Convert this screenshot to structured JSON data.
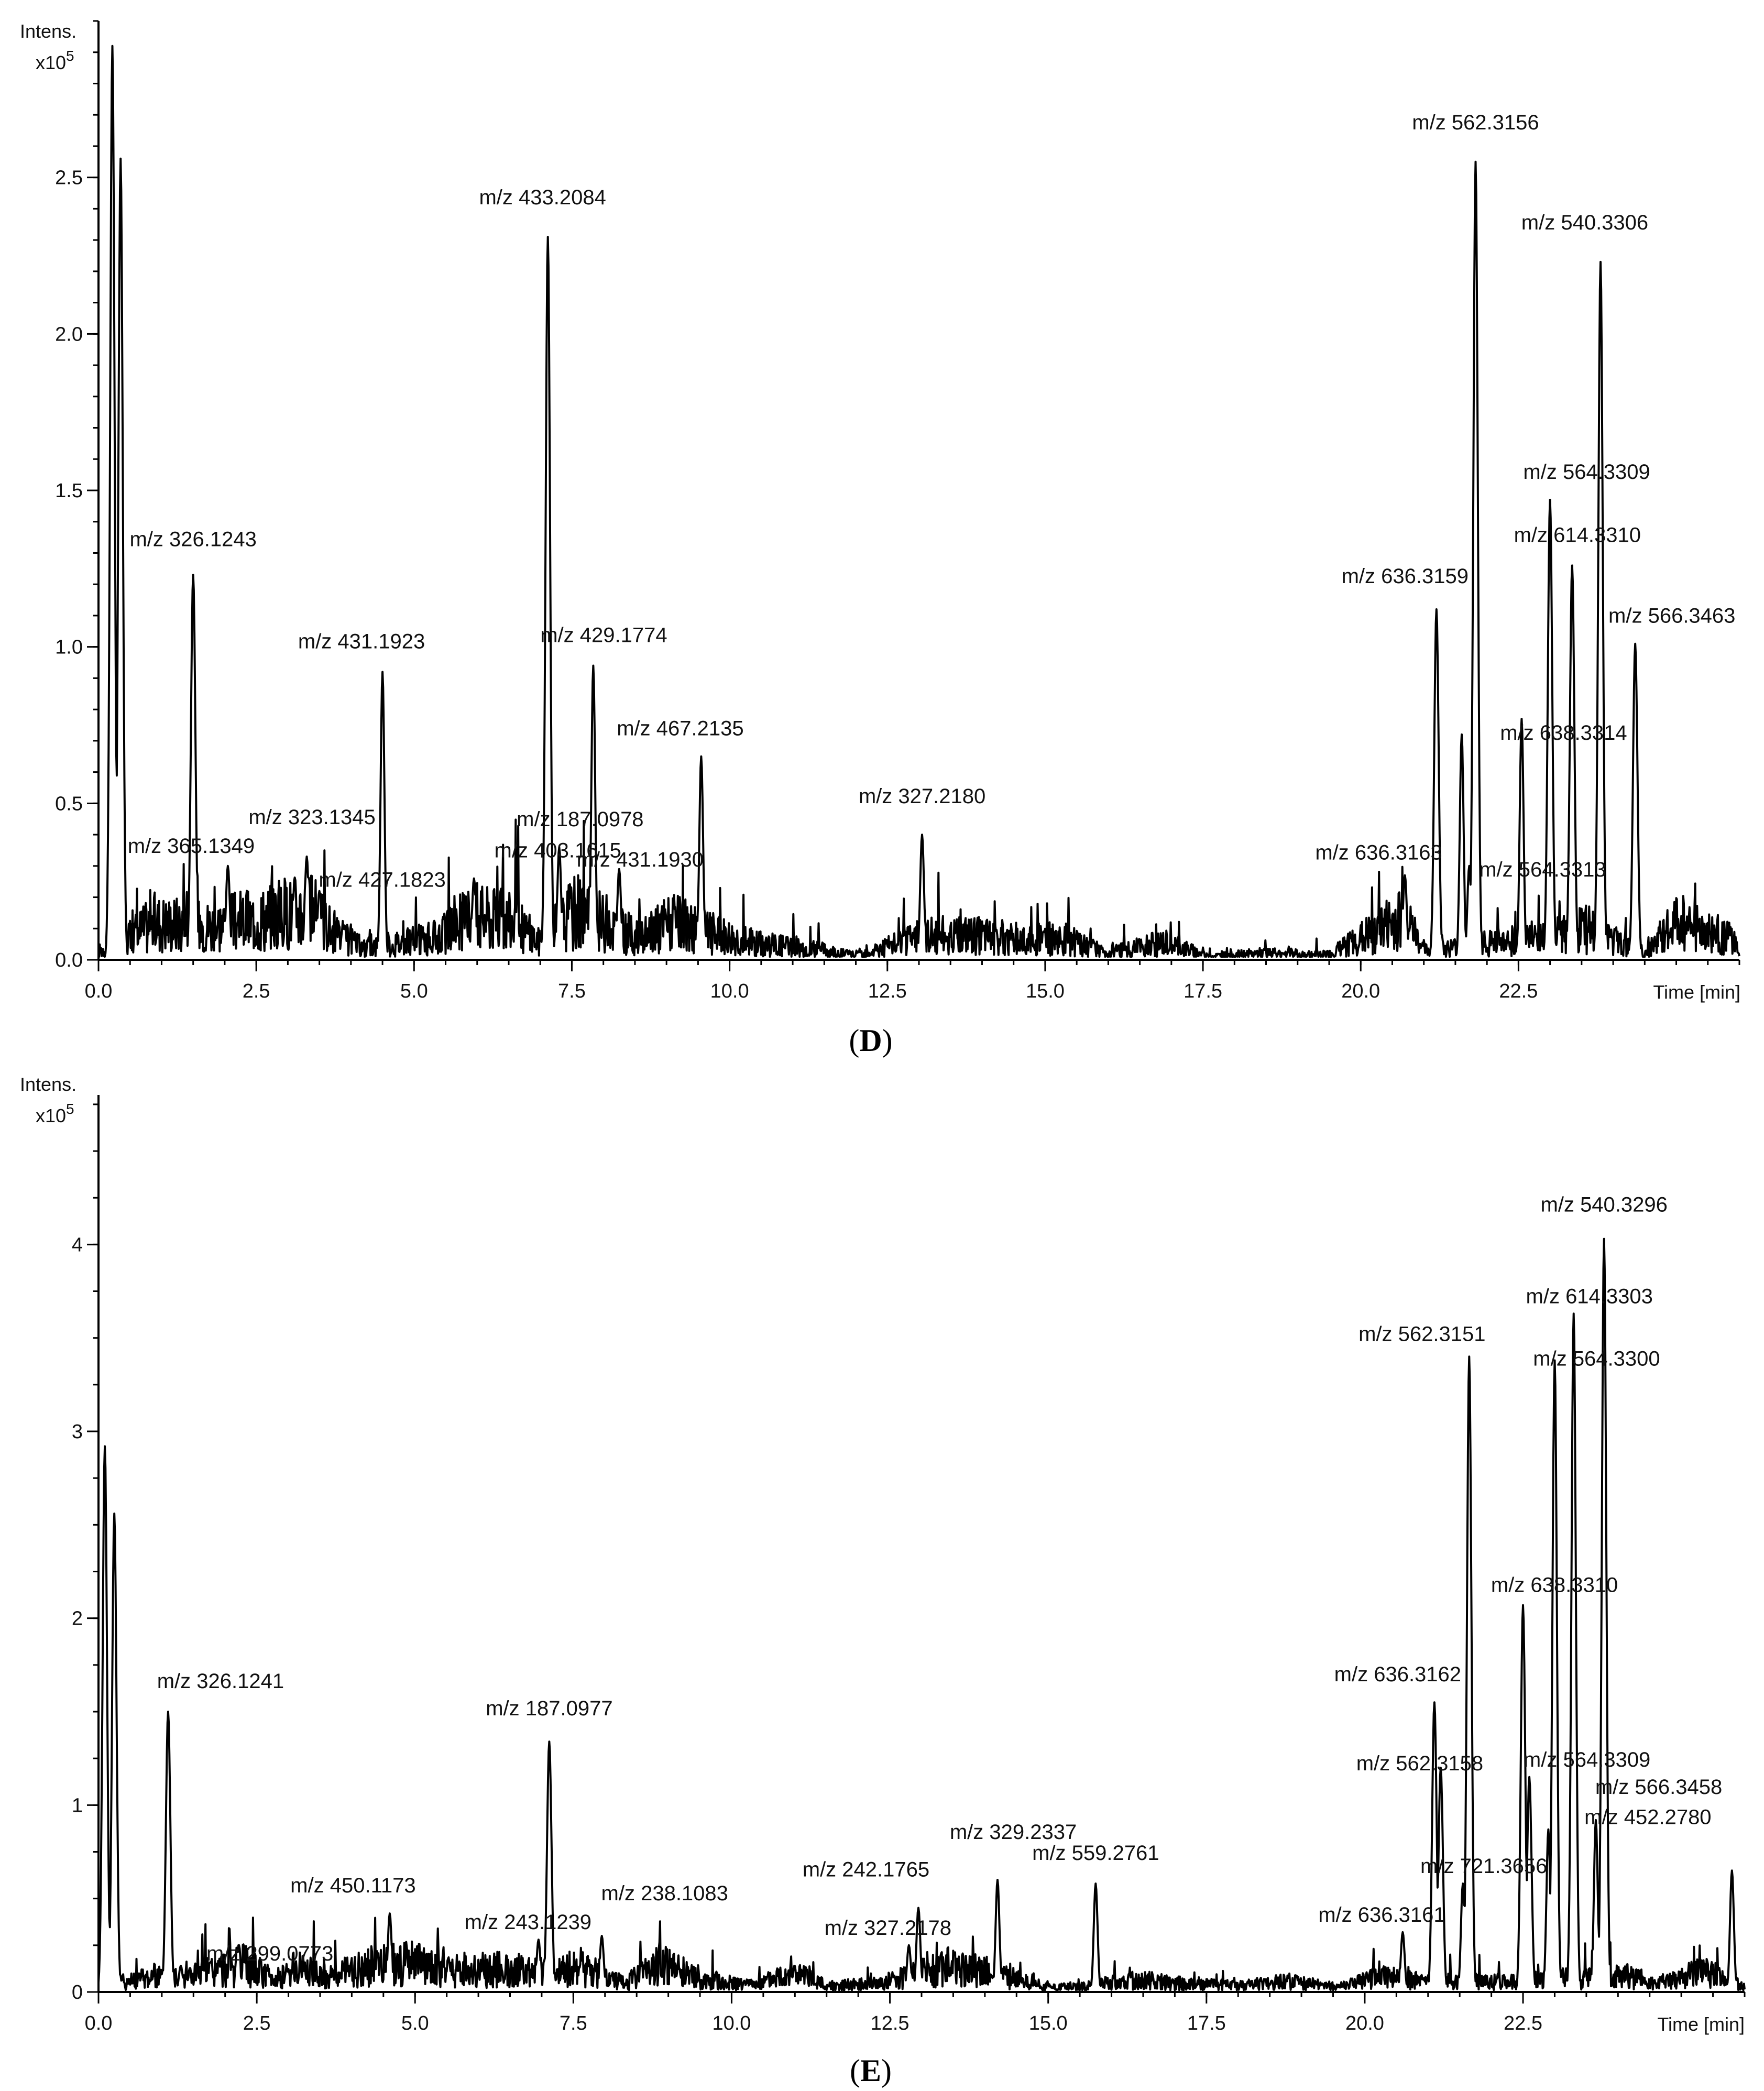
{
  "chart_data": [
    {
      "type": "line",
      "panel": "D",
      "y_unit_label": "Intens.",
      "y_scale_prefix": "x10",
      "y_scale_exponent": "5",
      "x_label": "Time [min]",
      "xlim": [
        0,
        26
      ],
      "ylim": [
        0,
        3.0
      ],
      "x_ticks": [
        0.0,
        2.5,
        5.0,
        7.5,
        10.0,
        12.5,
        15.0,
        17.5,
        20.0,
        22.5
      ],
      "x_tick_labels": [
        "0.0",
        "2.5",
        "5.0",
        "7.5",
        "10.0",
        "12.5",
        "15.0",
        "17.5",
        "20.0",
        "22.5"
      ],
      "y_ticks": [
        0.0,
        0.5,
        1.0,
        1.5,
        2.0,
        2.5
      ],
      "y_tick_labels": [
        "0.0",
        "0.5",
        "1.0",
        "1.5",
        "2.0",
        "2.5"
      ],
      "baseline": [
        [
          0,
          0.05
        ],
        [
          0.9,
          0.22
        ],
        [
          1.8,
          0.2
        ],
        [
          2.7,
          0.25
        ],
        [
          3.3,
          0.3
        ],
        [
          3.8,
          0.14
        ],
        [
          4.2,
          0.07
        ],
        [
          5.4,
          0.13
        ],
        [
          5.9,
          0.26
        ],
        [
          6.6,
          0.22
        ],
        [
          7.0,
          0.1
        ],
        [
          7.6,
          0.3
        ],
        [
          8.1,
          0.2
        ],
        [
          8.6,
          0.12
        ],
        [
          9.0,
          0.22
        ],
        [
          10.4,
          0.1
        ],
        [
          11.0,
          0.08
        ],
        [
          12.0,
          0.03
        ],
        [
          12.9,
          0.12
        ],
        [
          13.4,
          0.15
        ],
        [
          14.3,
          0.13
        ],
        [
          15.3,
          0.12
        ],
        [
          16.0,
          0.04
        ],
        [
          16.9,
          0.1
        ],
        [
          17.6,
          0.02
        ],
        [
          18.5,
          0.04
        ],
        [
          19.5,
          0.03
        ],
        [
          20.7,
          0.25
        ],
        [
          21.0,
          0.05
        ],
        [
          22.1,
          0.1
        ],
        [
          22.9,
          0.12
        ],
        [
          23.6,
          0.18
        ],
        [
          24.1,
          0.1
        ],
        [
          24.5,
          0.03
        ],
        [
          25.0,
          0.22
        ],
        [
          25.2,
          0.2
        ],
        [
          25.5,
          0.16
        ],
        [
          25.9,
          0.12
        ],
        [
          26,
          0.03
        ]
      ],
      "peaks": [
        {
          "rt": 0.22,
          "intensity": 2.92,
          "label": ""
        },
        {
          "rt": 0.35,
          "intensity": 2.56,
          "label": ""
        },
        {
          "rt": 1.5,
          "intensity": 1.23,
          "label": "m/z 326.1243"
        },
        {
          "rt": 2.05,
          "intensity": 0.3,
          "label": "m/z 365.1349"
        },
        {
          "rt": 3.3,
          "intensity": 0.33,
          "label": "m/z 323.1345"
        },
        {
          "rt": 3.5,
          "intensity": 0.22,
          "label": "m/z 427.1823"
        },
        {
          "rt": 4.5,
          "intensity": 0.92,
          "label": "m/z 431.1923"
        },
        {
          "rt": 5.95,
          "intensity": 0.26,
          "label": "m/z 403.1615"
        },
        {
          "rt": 7.12,
          "intensity": 2.31,
          "label": "m/z 433.2084"
        },
        {
          "rt": 7.3,
          "intensity": 0.36,
          "label": "m/z 187.0978"
        },
        {
          "rt": 7.84,
          "intensity": 0.94,
          "label": "m/z 429.1774"
        },
        {
          "rt": 8.25,
          "intensity": 0.29,
          "label": "m/z 431.1930"
        },
        {
          "rt": 9.55,
          "intensity": 0.65,
          "label": "m/z 467.2135"
        },
        {
          "rt": 13.05,
          "intensity": 0.4,
          "label": "m/z 327.2180"
        },
        {
          "rt": 20.7,
          "intensity": 0.27,
          "label": "m/z 636.3163"
        },
        {
          "rt": 21.2,
          "intensity": 1.12,
          "label": "m/z 636.3159"
        },
        {
          "rt": 21.6,
          "intensity": 0.72,
          "label": ""
        },
        {
          "rt": 21.72,
          "intensity": 0.3,
          "label": "m/z 564.3313"
        },
        {
          "rt": 21.82,
          "intensity": 2.55,
          "label": "m/z 562.3156"
        },
        {
          "rt": 22.55,
          "intensity": 0.77,
          "label": "m/z 638.3314"
        },
        {
          "rt": 23.0,
          "intensity": 1.47,
          "label": "m/z 564.3309"
        },
        {
          "rt": 23.35,
          "intensity": 1.26,
          "label": "m/z 614.3310"
        },
        {
          "rt": 23.8,
          "intensity": 2.23,
          "label": "m/z 540.3306"
        },
        {
          "rt": 24.35,
          "intensity": 1.01,
          "label": "m/z 566.3463"
        }
      ]
    },
    {
      "type": "line",
      "panel": "E",
      "y_unit_label": "Intens.",
      "y_scale_prefix": "x10",
      "y_scale_exponent": "5",
      "x_label": "Time [min]",
      "xlim": [
        0,
        26
      ],
      "ylim": [
        0,
        4.8
      ],
      "x_ticks": [
        0.0,
        2.5,
        5.0,
        7.5,
        10.0,
        12.5,
        15.0,
        17.5,
        20.0,
        22.5
      ],
      "x_tick_labels": [
        "0.0",
        "2.5",
        "5.0",
        "7.5",
        "10.0",
        "12.5",
        "15.0",
        "17.5",
        "20.0",
        "22.5"
      ],
      "y_ticks": [
        0,
        1,
        2,
        3,
        4
      ],
      "y_tick_labels": [
        "0",
        "1",
        "2",
        "3",
        "4"
      ],
      "baseline": [
        [
          0,
          0.05
        ],
        [
          0.8,
          0.15
        ],
        [
          1.6,
          0.18
        ],
        [
          2.3,
          0.26
        ],
        [
          2.8,
          0.12
        ],
        [
          3.2,
          0.25
        ],
        [
          3.7,
          0.15
        ],
        [
          4.2,
          0.24
        ],
        [
          5.0,
          0.28
        ],
        [
          5.6,
          0.2
        ],
        [
          6.3,
          0.22
        ],
        [
          6.9,
          0.2
        ],
        [
          7.6,
          0.25
        ],
        [
          8.3,
          0.08
        ],
        [
          8.9,
          0.28
        ],
        [
          9.5,
          0.12
        ],
        [
          10.4,
          0.06
        ],
        [
          10.9,
          0.2
        ],
        [
          11.5,
          0.06
        ],
        [
          12.3,
          0.08
        ],
        [
          13.4,
          0.25
        ],
        [
          14.0,
          0.2
        ],
        [
          14.9,
          0.06
        ],
        [
          15.5,
          0.05
        ],
        [
          16.4,
          0.12
        ],
        [
          17.2,
          0.08
        ],
        [
          18.0,
          0.06
        ],
        [
          18.8,
          0.1
        ],
        [
          19.6,
          0.05
        ],
        [
          20.3,
          0.15
        ],
        [
          20.9,
          0.1
        ],
        [
          22.2,
          0.1
        ],
        [
          22.8,
          0.12
        ],
        [
          24.2,
          0.15
        ],
        [
          24.6,
          0.08
        ],
        [
          25.3,
          0.2
        ],
        [
          26,
          0.05
        ]
      ],
      "peaks": [
        {
          "rt": 0.1,
          "intensity": 2.92,
          "label": ""
        },
        {
          "rt": 0.25,
          "intensity": 2.56,
          "label": ""
        },
        {
          "rt": 1.1,
          "intensity": 1.5,
          "label": "m/z 326.1241"
        },
        {
          "rt": 1.3,
          "intensity": 0.14,
          "label": "m/z 299.0773"
        },
        {
          "rt": 4.6,
          "intensity": 0.42,
          "label": "m/z 450.1173"
        },
        {
          "rt": 6.95,
          "intensity": 0.28,
          "label": "m/z 243.1239"
        },
        {
          "rt": 7.12,
          "intensity": 1.34,
          "label": "m/z 187.0977"
        },
        {
          "rt": 7.95,
          "intensity": 0.3,
          "label": "m/z 238.1083"
        },
        {
          "rt": 12.8,
          "intensity": 0.25,
          "label": "m/z 327.2178"
        },
        {
          "rt": 12.95,
          "intensity": 0.45,
          "label": "m/z 242.1765"
        },
        {
          "rt": 14.2,
          "intensity": 0.6,
          "label": "m/z 329.2337"
        },
        {
          "rt": 15.75,
          "intensity": 0.58,
          "label": "m/z 559.2761"
        },
        {
          "rt": 20.6,
          "intensity": 0.32,
          "label": "m/z 636.3161"
        },
        {
          "rt": 21.1,
          "intensity": 1.55,
          "label": "m/z 636.3162"
        },
        {
          "rt": 21.2,
          "intensity": 1.2,
          "label": "m/z 562.3158"
        },
        {
          "rt": 21.55,
          "intensity": 0.58,
          "label": "m/z 721.3656"
        },
        {
          "rt": 21.65,
          "intensity": 3.4,
          "label": "m/z 562.3151"
        },
        {
          "rt": 22.5,
          "intensity": 2.07,
          "label": "m/z 638.3310"
        },
        {
          "rt": 22.6,
          "intensity": 1.15,
          "label": "m/z 564.3309"
        },
        {
          "rt": 22.9,
          "intensity": 0.87,
          "label": "m/z 452.2780"
        },
        {
          "rt": 23.0,
          "intensity": 3.38,
          "label": "m/z 564.3300"
        },
        {
          "rt": 23.3,
          "intensity": 3.63,
          "label": "m/z 614.3303"
        },
        {
          "rt": 23.65,
          "intensity": 0.92,
          "label": "m/z 566.3458"
        },
        {
          "rt": 23.78,
          "intensity": 4.03,
          "label": "m/z 540.3296"
        },
        {
          "rt": 25.8,
          "intensity": 0.65,
          "label": ""
        }
      ]
    }
  ]
}
